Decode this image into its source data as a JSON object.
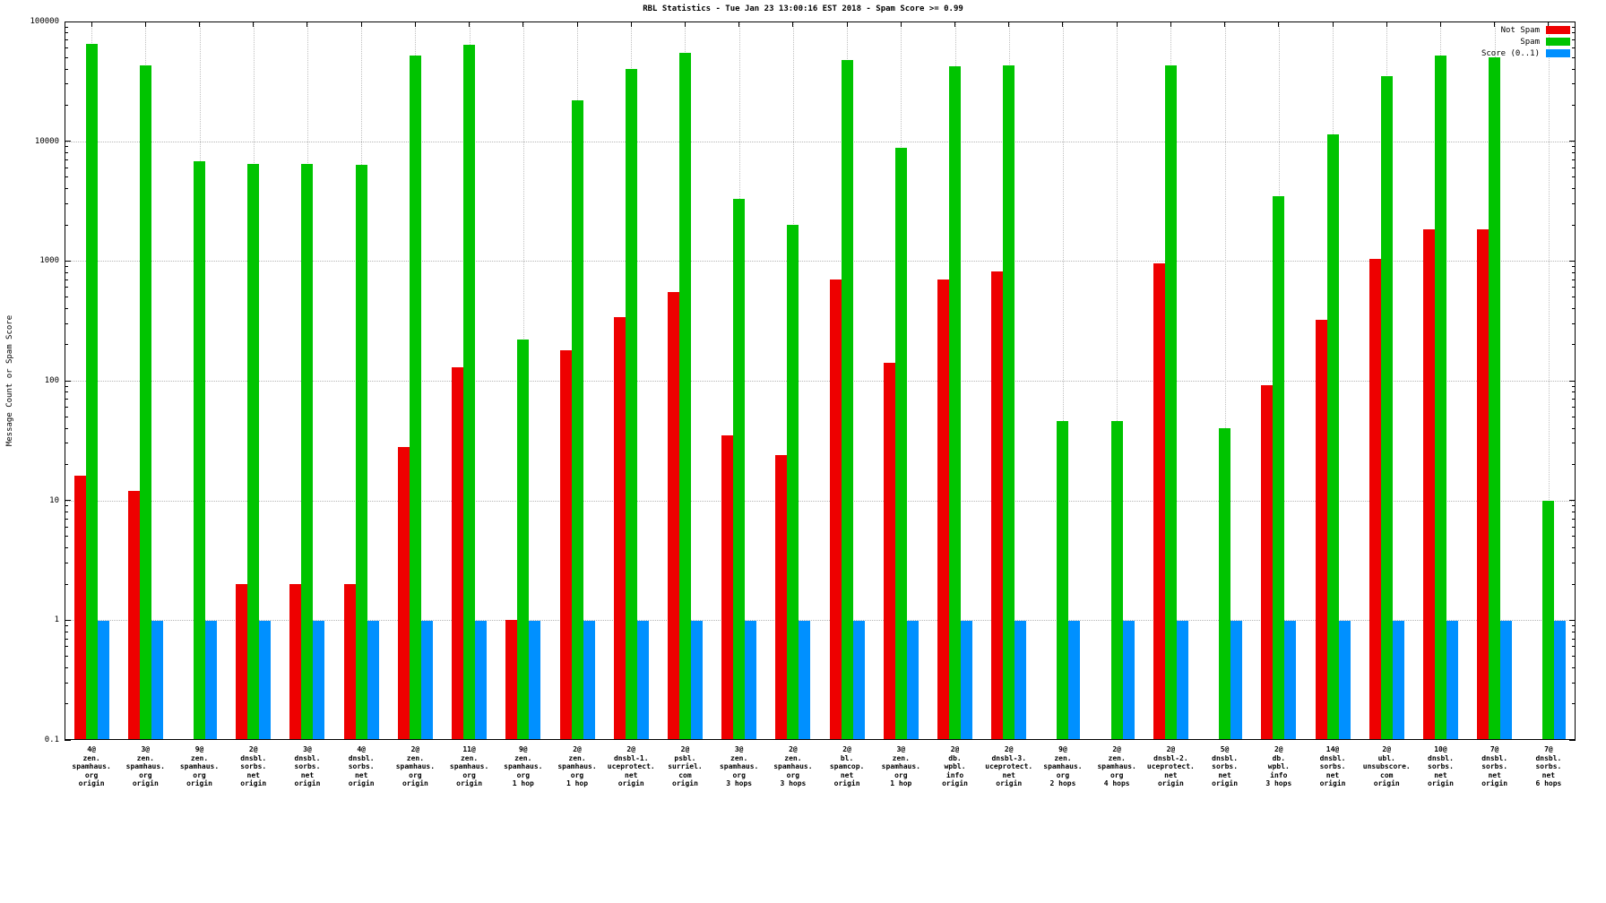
{
  "title": "RBL Statistics - Tue Jan 23 13:00:16 EST 2018 - Spam Score >= 0.99",
  "ylabel": "Message Count or Spam Score",
  "legend": [
    {
      "label": "Not Spam",
      "color": "#ee0000"
    },
    {
      "label": "Spam",
      "color": "#00c400"
    },
    {
      "label": "Score (0..1)",
      "color": "#0090ff"
    }
  ],
  "chart_data": {
    "type": "bar",
    "scale": "log",
    "title": "RBL Statistics - Tue Jan 23 13:00:16 EST 2018 - Spam Score >= 0.99",
    "xlabel": "",
    "ylabel": "Message Count or Spam Score",
    "ylim": [
      0.1,
      100000
    ],
    "ytick_labels": [
      "100000",
      "10000",
      "1000",
      "100",
      "10",
      "1",
      "0.1"
    ],
    "grid": true,
    "legend_position": "top-right",
    "categories": [
      [
        "4@",
        "zen.",
        "spamhaus.",
        "org",
        "origin"
      ],
      [
        "3@",
        "zen.",
        "spamhaus.",
        "org",
        "origin"
      ],
      [
        "9@",
        "zen.",
        "spamhaus.",
        "org",
        "origin"
      ],
      [
        "2@",
        "dnsbl.",
        "sorbs.",
        "net",
        "origin"
      ],
      [
        "3@",
        "dnsbl.",
        "sorbs.",
        "net",
        "origin"
      ],
      [
        "4@",
        "dnsbl.",
        "sorbs.",
        "net",
        "origin"
      ],
      [
        "2@",
        "zen.",
        "spamhaus.",
        "org",
        "origin"
      ],
      [
        "11@",
        "zen.",
        "spamhaus.",
        "org",
        "origin"
      ],
      [
        "9@",
        "zen.",
        "spamhaus.",
        "org",
        "1 hop"
      ],
      [
        "2@",
        "zen.",
        "spamhaus.",
        "org",
        "1 hop"
      ],
      [
        "2@",
        "dnsbl-1.",
        "uceprotect.",
        "net",
        "origin"
      ],
      [
        "2@",
        "psbl.",
        "surriel.",
        "com",
        "origin"
      ],
      [
        "3@",
        "zen.",
        "spamhaus.",
        "org",
        "3 hops"
      ],
      [
        "2@",
        "zen.",
        "spamhaus.",
        "org",
        "3 hops"
      ],
      [
        "2@",
        "bl.",
        "spamcop.",
        "net",
        "origin"
      ],
      [
        "3@",
        "zen.",
        "spamhaus.",
        "org",
        "1 hop"
      ],
      [
        "2@",
        "db.",
        "wpbl.",
        "info",
        "origin"
      ],
      [
        "2@",
        "dnsbl-3.",
        "uceprotect.",
        "net",
        "origin"
      ],
      [
        "9@",
        "zen.",
        "spamhaus.",
        "org",
        "2 hops"
      ],
      [
        "2@",
        "zen.",
        "spamhaus.",
        "org",
        "4 hops"
      ],
      [
        "2@",
        "dnsbl-2.",
        "uceprotect.",
        "net",
        "origin"
      ],
      [
        "5@",
        "dnsbl.",
        "sorbs.",
        "net",
        "origin"
      ],
      [
        "2@",
        "db.",
        "wpbl.",
        "info",
        "3 hops"
      ],
      [
        "14@",
        "dnsbl.",
        "sorbs.",
        "net",
        "origin"
      ],
      [
        "2@",
        "ubl.",
        "unsubscore.",
        "com",
        "origin"
      ],
      [
        "10@",
        "dnsbl.",
        "sorbs.",
        "net",
        "origin"
      ],
      [
        "7@",
        "dnsbl.",
        "sorbs.",
        "net",
        "origin"
      ],
      [
        "7@",
        "dnsbl.",
        "sorbs.",
        "net",
        "6 hops"
      ]
    ],
    "series": [
      {
        "name": "Not Spam",
        "color": "#ee0000",
        "values": [
          16,
          12,
          null,
          2,
          2,
          2,
          28,
          130,
          1,
          180,
          340,
          550,
          35,
          24,
          700,
          140,
          700,
          820,
          null,
          null,
          950,
          null,
          92,
          320,
          1050,
          1850,
          1850,
          null
        ]
      },
      {
        "name": "Spam",
        "color": "#00c400",
        "values": [
          65000,
          43000,
          6800,
          6500,
          6500,
          6400,
          52000,
          64000,
          220,
          22000,
          40000,
          55000,
          3300,
          2000,
          48000,
          8800,
          42000,
          43000,
          46,
          46,
          43000,
          40,
          3500,
          11500,
          35000,
          52000,
          50000,
          10
        ]
      },
      {
        "name": "Score (0..1)",
        "color": "#0090ff",
        "values": [
          0.99,
          0.99,
          0.99,
          0.99,
          0.99,
          0.99,
          0.99,
          0.99,
          0.99,
          0.99,
          0.99,
          0.99,
          0.99,
          0.99,
          0.99,
          0.99,
          0.99,
          0.99,
          0.99,
          0.99,
          0.99,
          0.99,
          0.99,
          0.99,
          0.99,
          0.99,
          0.99,
          0.99
        ]
      }
    ]
  }
}
